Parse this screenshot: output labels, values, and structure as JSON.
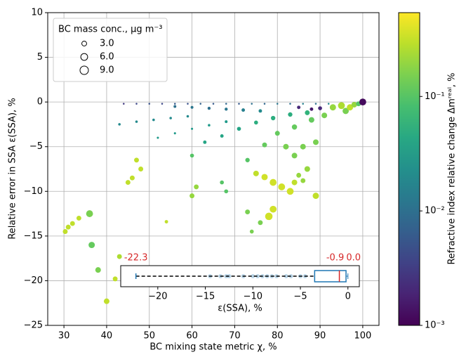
{
  "chart_data": [
    {
      "type": "scatter",
      "xlabel": "BC mixing state metric χ, %",
      "ylabel": "Relative error in SSA ε(SSA), %",
      "xlim": [
        26.2,
        103.8
      ],
      "ylim": [
        -25,
        10
      ],
      "xticks": [
        30,
        40,
        50,
        60,
        70,
        80,
        90,
        100
      ],
      "yticks": [
        {
          "value": -25,
          "label": "−25"
        },
        {
          "value": -20,
          "label": "−20"
        },
        {
          "value": -15,
          "label": "−15"
        },
        {
          "value": -10,
          "label": "−10"
        },
        {
          "value": -5,
          "label": "−5"
        },
        0,
        5,
        10
      ],
      "grid": true,
      "legend": {
        "title": "BC mass conc., μg m⁻³",
        "loc": "upper left",
        "entries": [
          {
            "value": 3,
            "label": "3.0"
          },
          {
            "value": 6,
            "label": "6.0"
          },
          {
            "value": 9,
            "label": "9.0"
          }
        ]
      },
      "colorbar": {
        "label": "Refractive index relative change Δmʳᵉᵃˡ, %",
        "scale": "log",
        "lim": [
          0.001,
          0.54
        ],
        "ticks": [
          {
            "value": 0.1,
            "label": "10⁻¹"
          },
          {
            "value": 0.01,
            "label": "10⁻²"
          },
          {
            "value": 0.001,
            "label": "10⁻³"
          }
        ],
        "colormap": "viridis"
      },
      "x": [
        44,
        47,
        50,
        53,
        56,
        59,
        62,
        65,
        68,
        71,
        74,
        77,
        80,
        83,
        86,
        89,
        92,
        85,
        88,
        90,
        56,
        60,
        64,
        68,
        72,
        76,
        93,
        95,
        96,
        97,
        98,
        99,
        100,
        43,
        47,
        51,
        55,
        59,
        52,
        56,
        60,
        64,
        68,
        63,
        67,
        71,
        75,
        79,
        83,
        87,
        73,
        77,
        80,
        84,
        88,
        91,
        82,
        84,
        86,
        87,
        89,
        75,
        77,
        79,
        81,
        83,
        84,
        78,
        79,
        73,
        76,
        74,
        60,
        61,
        67,
        68,
        47,
        48,
        46,
        45,
        54,
        60,
        30.3,
        31,
        32,
        33.5,
        36,
        36.5,
        38,
        40,
        42,
        43,
        85,
        86,
        89
      ],
      "values": [
        -0.2,
        -0.2,
        -0.2,
        -0.2,
        -0.2,
        -0.2,
        -0.2,
        -0.2,
        -0.2,
        -0.2,
        -0.2,
        -0.2,
        -0.2,
        -0.2,
        -0.2,
        -0.2,
        -0.2,
        -0.6,
        -0.8,
        -0.7,
        -0.5,
        -0.6,
        -0.7,
        -0.8,
        -0.9,
        -1,
        -0.6,
        -0.4,
        -1,
        -0.6,
        -0.3,
        -0.2,
        0,
        -2.5,
        -2.2,
        -2,
        -1.8,
        -1.6,
        -4,
        -3.5,
        -3,
        -2.6,
        -2.2,
        -4.5,
        -3.8,
        -3,
        -2.3,
        -1.8,
        -1.4,
        -1.2,
        -6.5,
        -4.8,
        -3.5,
        -2.8,
        -2,
        -1.5,
        -5,
        -6,
        -5,
        -7.5,
        -4.5,
        -8,
        -8.4,
        -9,
        -9.5,
        -10,
        -9,
        -12.8,
        -12,
        -12.3,
        -13.5,
        -14.5,
        -10.5,
        -9.5,
        -9,
        -10,
        -6.5,
        -7.5,
        -8.5,
        -9,
        -13.4,
        -6,
        -14.5,
        -14,
        -13.6,
        -13,
        -12.5,
        -16,
        -18.8,
        -22.3,
        -19.8,
        -17.3,
        -8.2,
        -8.8,
        -10.5
      ],
      "sizes": [
        0.4,
        0.4,
        0.4,
        0.4,
        0.4,
        0.4,
        0.4,
        0.4,
        0.4,
        0.4,
        0.4,
        0.4,
        0.4,
        0.4,
        0.4,
        0.4,
        0.4,
        1.5,
        1.5,
        2,
        1,
        1,
        1.2,
        1.2,
        1.5,
        1.5,
        5,
        6,
        5,
        5,
        4,
        3,
        6,
        0.8,
        0.8,
        0.8,
        0.8,
        0.8,
        0.6,
        0.6,
        0.6,
        0.8,
        1,
        1.5,
        1.5,
        2,
        2,
        2.5,
        2.5,
        3,
        2.5,
        3,
        3,
        3.5,
        4,
        4,
        4,
        4,
        4,
        4,
        4,
        4,
        5,
        6,
        6,
        6,
        4,
        7,
        6,
        3,
        3,
        2,
        3,
        3,
        2,
        2,
        3,
        3,
        3,
        3,
        1.5,
        2,
        3,
        3,
        3,
        3,
        6,
        5,
        4,
        4,
        3,
        3,
        3,
        3,
        5
      ],
      "c": [
        0.003,
        0.004,
        0.005,
        0.004,
        0.006,
        0.005,
        0.007,
        0.006,
        0.008,
        0.006,
        0.01,
        0.008,
        0.012,
        0.01,
        0.015,
        0.01,
        0.02,
        0.002,
        0.0015,
        0.002,
        0.01,
        0.012,
        0.01,
        0.012,
        0.015,
        0.02,
        0.2,
        0.25,
        0.15,
        0.3,
        0.2,
        0.1,
        0.0012,
        0.02,
        0.02,
        0.02,
        0.02,
        0.02,
        0.03,
        0.03,
        0.03,
        0.03,
        0.03,
        0.04,
        0.04,
        0.04,
        0.05,
        0.05,
        0.05,
        0.06,
        0.1,
        0.12,
        0.12,
        0.12,
        0.12,
        0.15,
        0.15,
        0.15,
        0.15,
        0.2,
        0.15,
        0.3,
        0.35,
        0.35,
        0.35,
        0.35,
        0.3,
        0.35,
        0.35,
        0.15,
        0.15,
        0.15,
        0.2,
        0.2,
        0.1,
        0.1,
        0.3,
        0.3,
        0.3,
        0.3,
        0.3,
        0.1,
        0.3,
        0.3,
        0.3,
        0.3,
        0.15,
        0.12,
        0.15,
        0.3,
        0.3,
        0.25,
        0.2,
        0.2,
        0.3
      ]
    },
    {
      "type": "box",
      "xlabel": "ε(SSA), %",
      "xlim": [
        -23.9,
        1.2
      ],
      "xticks": [
        {
          "value": -20,
          "label": "−20"
        },
        {
          "value": -15,
          "label": "−15"
        },
        {
          "value": -10,
          "label": "−10"
        },
        {
          "value": -5,
          "label": "−5"
        },
        0
      ],
      "stats": {
        "whislo": -22.3,
        "q1": -3.5,
        "med": -0.9,
        "q3": -0.2,
        "whishi": 0.0
      },
      "annotations": [
        {
          "value": -22.3,
          "label": "-22.3"
        },
        {
          "value": -0.9,
          "label": "-0.9"
        },
        {
          "value": 0.0,
          "label": "0.0"
        }
      ],
      "fliers": [
        -14.5,
        -13.4,
        -12.8,
        -12.5,
        -11,
        -10,
        -9.5,
        -9,
        -8.5,
        -8,
        -7.5,
        -6.5,
        -6,
        -5,
        -4.5
      ],
      "color": "#1f77b4",
      "median_color": "#d62728"
    }
  ]
}
